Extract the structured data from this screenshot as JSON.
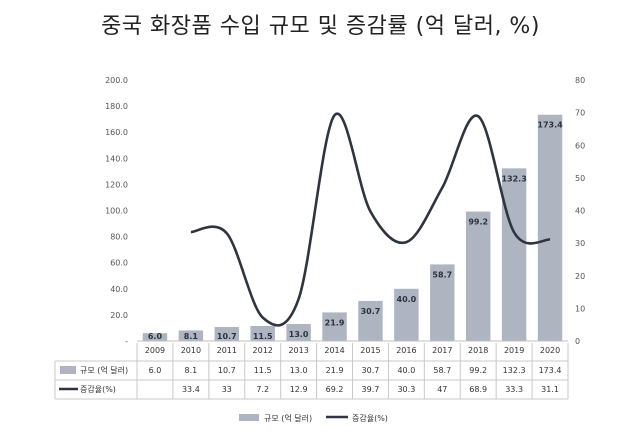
{
  "chart_data": {
    "type": "bar",
    "title": "중국 화장품 수입 규모 및 증감률 (억 달러, %)",
    "categories": [
      "2009",
      "2010",
      "2011",
      "2012",
      "2013",
      "2014",
      "2015",
      "2016",
      "2017",
      "2018",
      "2019",
      "2020"
    ],
    "series": [
      {
        "name": "규모 (억 달러)",
        "type": "bar",
        "axis": "left",
        "color": "#aeb5c1",
        "values": [
          6.0,
          8.1,
          10.7,
          11.5,
          13.0,
          21.9,
          30.7,
          40.0,
          58.7,
          99.2,
          132.3,
          173.4
        ],
        "labels": [
          "6.0",
          "8.1",
          "10.7",
          "11.5",
          "13.0",
          "21.9",
          "30.7",
          "40.0",
          "58.7",
          "99.2",
          "132.3",
          "173.4"
        ]
      },
      {
        "name": "증감율(%)",
        "type": "line",
        "axis": "right",
        "color": "#2e3440",
        "values": [
          null,
          33.4,
          33,
          7.2,
          12.9,
          69.2,
          39.7,
          30.3,
          47,
          68.9,
          33.3,
          31.1
        ],
        "labels": [
          "",
          "33.4",
          "33",
          "7.2",
          "12.9",
          "69.2",
          "39.7",
          "30.3",
          "47",
          "68.9",
          "33.3",
          "31.1"
        ]
      }
    ],
    "y_left": {
      "range": [
        0,
        200
      ],
      "ticks": [
        0,
        20,
        40,
        60,
        80,
        100,
        120,
        140,
        160,
        180,
        200
      ],
      "tick_labels": [
        "-",
        "20.0",
        "40.0",
        "60.0",
        "80.0",
        "100.0",
        "120.0",
        "140.0",
        "160.0",
        "180.0",
        "200.0"
      ]
    },
    "y_right": {
      "range": [
        0,
        80
      ],
      "ticks": [
        0,
        10,
        20,
        30,
        40,
        50,
        60,
        70,
        80
      ],
      "tick_labels": [
        "0",
        "10",
        "20",
        "30",
        "40",
        "50",
        "60",
        "70",
        "80"
      ]
    },
    "grid": false,
    "data_table": true,
    "legend": "bottom"
  }
}
